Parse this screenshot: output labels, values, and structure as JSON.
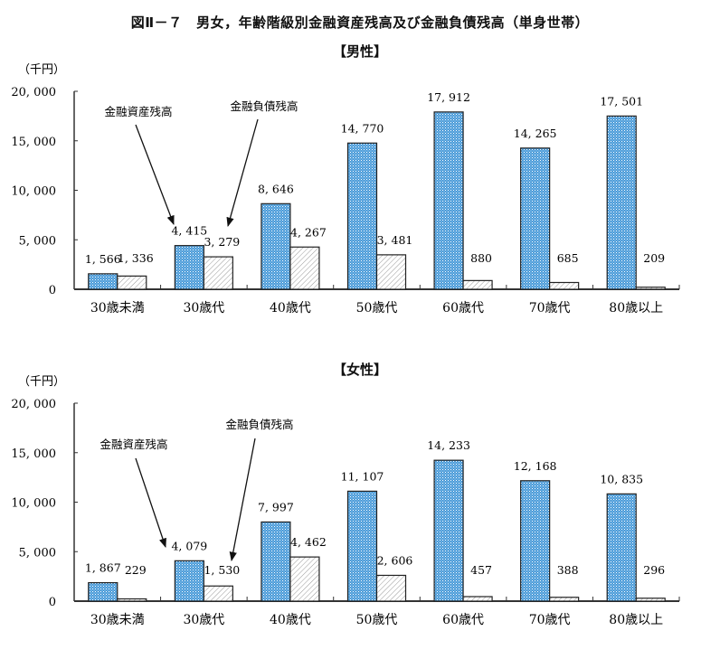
{
  "title": "図Ⅱ－７　男女，年齢階級別金融資産残高及び金融負債残高（単身世帯）",
  "colors": {
    "asset_fill": "#4a9ad8",
    "asset_dot": "#ffffff",
    "debt_fill": "#ffffff",
    "debt_hatch": "#9a9a9a",
    "axis": "#333333"
  },
  "charts": [
    {
      "subtitle": "【男性】",
      "unit": "（千円）",
      "annotation_asset": "金融資産残高",
      "annotation_debt": "金融負債残高"
    },
    {
      "subtitle": "【女性】",
      "unit": "（千円）",
      "annotation_asset": "金融資産残高",
      "annotation_debt": "金融負債残高"
    }
  ],
  "chart_data": [
    {
      "type": "bar",
      "title": "【男性】",
      "ylabel": "（千円）",
      "xlabel": "",
      "ylim": [
        0,
        20000
      ],
      "yticks": [
        0,
        5000,
        10000,
        15000,
        20000
      ],
      "ytick_labels": [
        "0",
        "5, 000",
        "10, 000",
        "15, 000",
        "20, 000"
      ],
      "categories": [
        "30歳未満",
        "30歳代",
        "40歳代",
        "50歳代",
        "60歳代",
        "70歳代",
        "80歳以上"
      ],
      "series": [
        {
          "name": "金融資産残高",
          "values": [
            1566,
            4415,
            8646,
            14770,
            17912,
            14265,
            17501
          ],
          "labels": [
            "1, 566",
            "4, 415",
            "8, 646",
            "14, 770",
            "17, 912",
            "14, 265",
            "17, 501"
          ]
        },
        {
          "name": "金融負債残高",
          "values": [
            1336,
            3279,
            4267,
            3481,
            880,
            685,
            209
          ],
          "labels": [
            "1, 336",
            "3, 279",
            "4, 267",
            "3, 481",
            "880",
            "685",
            "209"
          ]
        }
      ],
      "grid": false,
      "legend": "arrow annotations"
    },
    {
      "type": "bar",
      "title": "【女性】",
      "ylabel": "（千円）",
      "xlabel": "",
      "ylim": [
        0,
        20000
      ],
      "yticks": [
        0,
        5000,
        10000,
        15000,
        20000
      ],
      "ytick_labels": [
        "0",
        "5, 000",
        "10, 000",
        "15, 000",
        "20, 000"
      ],
      "categories": [
        "30歳未満",
        "30歳代",
        "40歳代",
        "50歳代",
        "60歳代",
        "70歳代",
        "80歳以上"
      ],
      "series": [
        {
          "name": "金融資産残高",
          "values": [
            1867,
            4079,
            7997,
            11107,
            14233,
            12168,
            10835
          ],
          "labels": [
            "1, 867",
            "4, 079",
            "7, 997",
            "11, 107",
            "14, 233",
            "12, 168",
            "10, 835"
          ]
        },
        {
          "name": "金融負債残高",
          "values": [
            229,
            1530,
            4462,
            2606,
            457,
            388,
            296
          ],
          "labels": [
            "229",
            "1, 530",
            "4, 462",
            "2, 606",
            "457",
            "388",
            "296"
          ]
        }
      ],
      "grid": false,
      "legend": "arrow annotations"
    }
  ]
}
